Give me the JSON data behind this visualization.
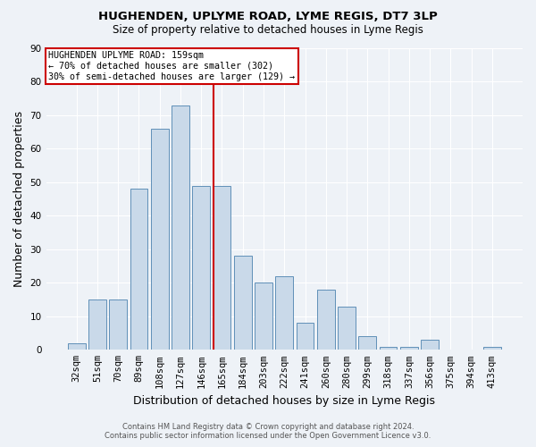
{
  "title": "HUGHENDEN, UPLYME ROAD, LYME REGIS, DT7 3LP",
  "subtitle": "Size of property relative to detached houses in Lyme Regis",
  "xlabel": "Distribution of detached houses by size in Lyme Regis",
  "ylabel": "Number of detached properties",
  "footnote1": "Contains HM Land Registry data © Crown copyright and database right 2024.",
  "footnote2": "Contains public sector information licensed under the Open Government Licence v3.0.",
  "bar_labels": [
    "32sqm",
    "51sqm",
    "70sqm",
    "89sqm",
    "108sqm",
    "127sqm",
    "146sqm",
    "165sqm",
    "184sqm",
    "203sqm",
    "222sqm",
    "241sqm",
    "260sqm",
    "280sqm",
    "299sqm",
    "318sqm",
    "337sqm",
    "356sqm",
    "375sqm",
    "394sqm",
    "413sqm"
  ],
  "bar_values": [
    2,
    15,
    15,
    48,
    66,
    73,
    49,
    49,
    28,
    20,
    22,
    8,
    18,
    13,
    4,
    1,
    1,
    3,
    0,
    0,
    1
  ],
  "bar_color": "#c9d9e9",
  "bar_edge_color": "#6090b8",
  "vline_x_index": 7,
  "vline_color": "#cc0000",
  "ylim": [
    0,
    90
  ],
  "yticks": [
    0,
    10,
    20,
    30,
    40,
    50,
    60,
    70,
    80,
    90
  ],
  "annotation_title": "HUGHENDEN UPLYME ROAD: 159sqm",
  "annotation_line1": "← 70% of detached houses are smaller (302)",
  "annotation_line2": "30% of semi-detached houses are larger (129) →",
  "annotation_box_facecolor": "#ffffff",
  "annotation_box_edgecolor": "#cc0000",
  "background_color": "#eef2f7",
  "grid_color": "#ffffff",
  "title_fontsize": 9.5,
  "subtitle_fontsize": 8.5,
  "axis_label_fontsize": 9,
  "tick_fontsize": 7.5,
  "footnote_fontsize": 6
}
